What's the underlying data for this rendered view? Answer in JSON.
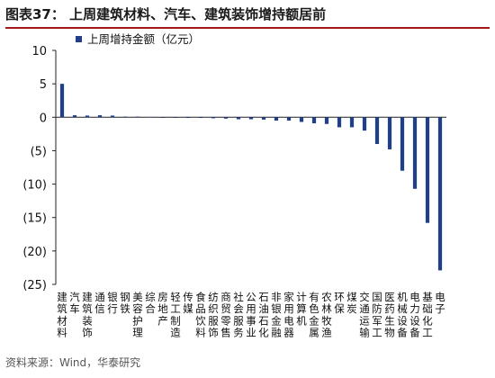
{
  "header": {
    "title": "图表37：  上周建筑材料、汽车、建筑装饰增持额居前"
  },
  "source": "资料来源：Wind，华泰研究",
  "colors": {
    "bar": "#1f3f8a",
    "rule": "#a31818"
  },
  "chart_data": {
    "type": "bar",
    "title": "图表37：  上周建筑材料、汽车、建筑装饰增持额居前",
    "xlabel": "",
    "ylabel": "",
    "ylim": [
      -25,
      10
    ],
    "yticks": [
      10,
      5,
      0,
      -5,
      -10,
      -15,
      -20,
      -25
    ],
    "ytick_labels": [
      "10",
      "5",
      "0",
      "(5)",
      "(10)",
      "(15)",
      "(20)",
      "(25)"
    ],
    "grid": false,
    "legend_position": "top-left",
    "categories": [
      "建筑材料",
      "汽车",
      "建筑装饰",
      "通信",
      "银行",
      "钢铁",
      "美容护理",
      "综合",
      "房地产",
      "轻工制造",
      "传媒",
      "食品饮料",
      "纺织服饰",
      "商贸零售",
      "社会服务",
      "公用事业",
      "石油石化",
      "非银金融",
      "家用电器",
      "计算机",
      "有色金属",
      "农林牧渔",
      "环保",
      "煤炭",
      "交通运输",
      "国防军工",
      "医药生物",
      "机械设备",
      "电力设备",
      "基础化工",
      "电子"
    ],
    "series": [
      {
        "name": "上周增持金额（亿元）",
        "values": [
          5.0,
          0.3,
          0.25,
          0.3,
          0.25,
          0.1,
          0.1,
          0.05,
          0.0,
          -0.05,
          -0.1,
          -0.1,
          -0.15,
          -0.2,
          -0.3,
          -0.3,
          -0.35,
          -0.5,
          -0.5,
          -0.7,
          -0.9,
          -1.0,
          -1.5,
          -1.5,
          -2.0,
          -4.0,
          -4.8,
          -8.0,
          -10.7,
          -15.8,
          -22.9
        ]
      }
    ]
  }
}
